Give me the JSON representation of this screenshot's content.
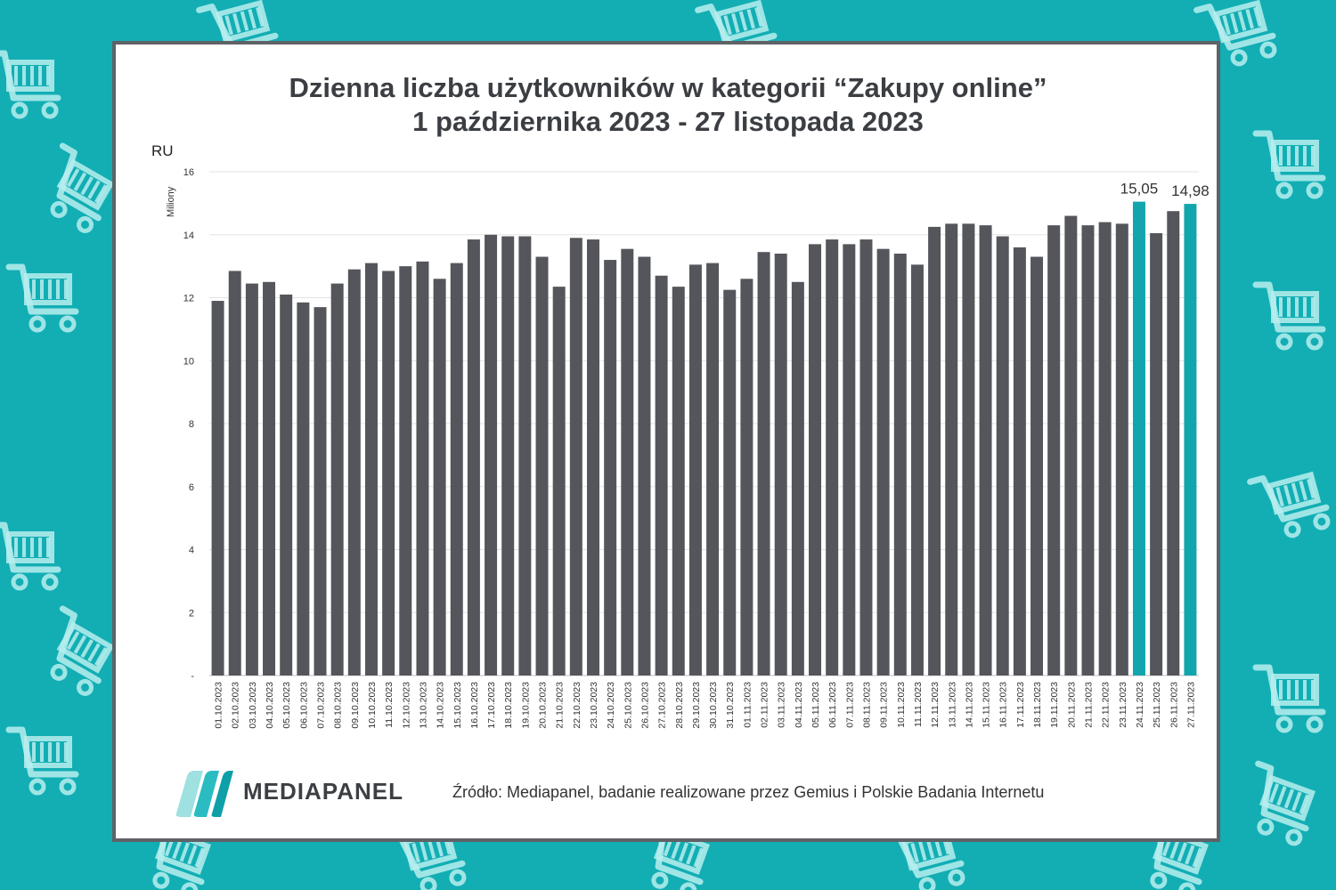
{
  "colors": {
    "background": "#12aeb4",
    "bar": "#54565b",
    "bar_highlight": "#12a5ad",
    "card_border": "#5f6266"
  },
  "decor_icons": [
    "shopping-cart-icon"
  ],
  "chart_data": {
    "type": "bar",
    "title": [
      "Dzienna liczba użytkowników w kategorii “Zakupy online”",
      "1 października 2023 - 27 listopada 2023"
    ],
    "unit_label": "RU",
    "ylabel": "Miliony",
    "xlabel": "",
    "ylim": [
      0,
      16
    ],
    "yticks": [
      0,
      2,
      4,
      6,
      8,
      10,
      12,
      14,
      16
    ],
    "ytick_labels": [
      "-",
      "2",
      "4",
      "6",
      "8",
      "10",
      "12",
      "14",
      "16"
    ],
    "grid": "horizontal",
    "legend": "none",
    "categories": [
      "01.10.2023",
      "02.10.2023",
      "03.10.2023",
      "04.10.2023",
      "05.10.2023",
      "06.10.2023",
      "07.10.2023",
      "08.10.2023",
      "09.10.2023",
      "10.10.2023",
      "11.10.2023",
      "12.10.2023",
      "13.10.2023",
      "14.10.2023",
      "15.10.2023",
      "16.10.2023",
      "17.10.2023",
      "18.10.2023",
      "19.10.2023",
      "20.10.2023",
      "21.10.2023",
      "22.10.2023",
      "23.10.2023",
      "24.10.2023",
      "25.10.2023",
      "26.10.2023",
      "27.10.2023",
      "28.10.2023",
      "29.10.2023",
      "30.10.2023",
      "31.10.2023",
      "01.11.2023",
      "02.11.2023",
      "03.11.2023",
      "04.11.2023",
      "05.11.2023",
      "06.11.2023",
      "07.11.2023",
      "08.11.2023",
      "09.11.2023",
      "10.11.2023",
      "11.11.2023",
      "12.11.2023",
      "13.11.2023",
      "14.11.2023",
      "15.11.2023",
      "16.11.2023",
      "17.11.2023",
      "18.11.2023",
      "19.11.2023",
      "20.11.2023",
      "21.11.2023",
      "22.11.2023",
      "23.11.2023",
      "24.11.2023",
      "25.11.2023",
      "26.11.2023",
      "27.11.2023"
    ],
    "values": [
      11.9,
      12.85,
      12.45,
      12.5,
      12.1,
      11.85,
      11.7,
      12.45,
      12.9,
      13.1,
      12.85,
      13.0,
      13.15,
      12.6,
      13.1,
      13.85,
      14.0,
      13.95,
      13.95,
      13.3,
      12.35,
      13.9,
      13.85,
      13.2,
      13.55,
      13.3,
      12.7,
      12.35,
      13.05,
      13.1,
      12.25,
      12.6,
      13.45,
      13.4,
      12.5,
      13.7,
      13.85,
      13.7,
      13.85,
      13.55,
      13.4,
      13.05,
      14.25,
      14.35,
      14.35,
      14.3,
      13.95,
      13.6,
      13.3,
      14.3,
      14.6,
      14.3,
      14.4,
      14.35,
      15.05,
      14.05,
      14.75,
      14.98
    ],
    "highlighted": [
      "24.11.2023",
      "27.11.2023"
    ],
    "data_labels": [
      {
        "category": "24.11.2023",
        "text": "15,05"
      },
      {
        "category": "27.11.2023",
        "text": "14,98"
      }
    ]
  },
  "footer": {
    "logo_text": "MEDIAPANEL",
    "source": "Źródło: Mediapanel, badanie realizowane przez Gemius i Polskie Badania Internetu"
  }
}
